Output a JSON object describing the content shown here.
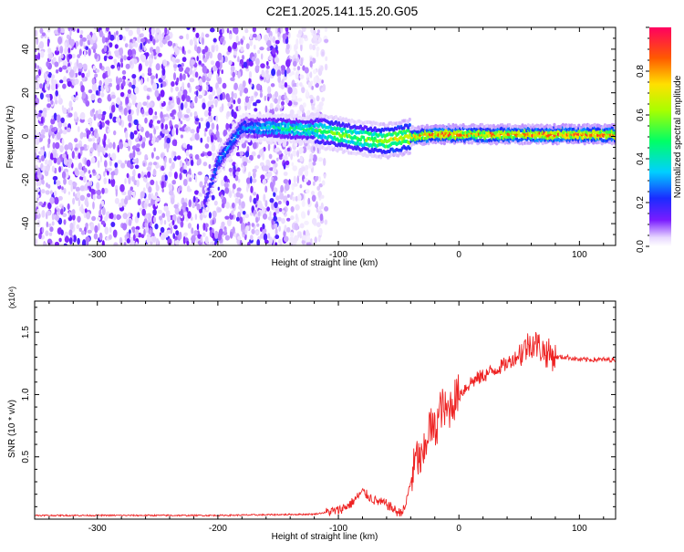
{
  "title": "C2E1.2025.141.15.20.G05",
  "chart_data": [
    {
      "type": "heatmap",
      "xlabel": "Height of straight line (km)",
      "ylabel": "Frequency (Hz)",
      "xlim": [
        -352,
        130
      ],
      "ylim": [
        -50,
        50
      ],
      "xticks": [
        -300,
        -200,
        -100,
        0,
        100
      ],
      "yticks": [
        -40,
        -20,
        0,
        20,
        40
      ],
      "colorbar": {
        "label": "Normalized spectral amplitude",
        "range": [
          0,
          1
        ],
        "ticks": [
          0.0,
          0.2,
          0.4,
          0.6,
          0.8
        ]
      },
      "ridge": {
        "description_points_x": [
          -210,
          -200,
          -180,
          -150,
          -120,
          -100,
          -80,
          -60,
          -40,
          -20,
          0,
          20,
          50,
          80,
          100,
          130
        ],
        "frequency": [
          -30,
          -12,
          4,
          4,
          3,
          1,
          -1,
          -2,
          0,
          1,
          1,
          1,
          1,
          1,
          1,
          1
        ],
        "amplitude": [
          0.2,
          0.3,
          0.3,
          0.45,
          0.5,
          0.6,
          0.55,
          0.7,
          0.75,
          0.9,
          0.85,
          0.8,
          0.85,
          0.9,
          0.9,
          0.85
        ]
      },
      "noise_region_x": [
        -352,
        -110
      ]
    },
    {
      "type": "line",
      "xlabel": "Height of straight line (km)",
      "ylabel": "SNR (10 * v/v)",
      "y_multiplier": "(x10⁴)",
      "xlim": [
        -352,
        130
      ],
      "ylim": [
        0,
        1.75
      ],
      "xticks": [
        -300,
        -200,
        -100,
        0,
        100
      ],
      "yticks": [
        0.5,
        1.0,
        1.5
      ],
      "series": [
        {
          "color": "#ee2222",
          "x": [
            -352,
            -300,
            -200,
            -120,
            -100,
            -90,
            -80,
            -70,
            -60,
            -50,
            -45,
            -40,
            -35,
            -30,
            -25,
            -20,
            -15,
            -10,
            -5,
            0,
            10,
            20,
            30,
            40,
            50,
            60,
            65,
            70,
            80,
            90,
            100,
            110,
            120,
            130
          ],
          "y": [
            0.03,
            0.03,
            0.03,
            0.04,
            0.07,
            0.12,
            0.22,
            0.15,
            0.12,
            0.05,
            0.08,
            0.3,
            0.5,
            0.45,
            0.75,
            0.7,
            0.9,
            0.85,
            0.95,
            1.0,
            1.1,
            1.15,
            1.2,
            1.25,
            1.32,
            1.42,
            1.4,
            1.35,
            1.3,
            1.3,
            1.28,
            1.28,
            1.28,
            1.28
          ]
        }
      ]
    }
  ]
}
